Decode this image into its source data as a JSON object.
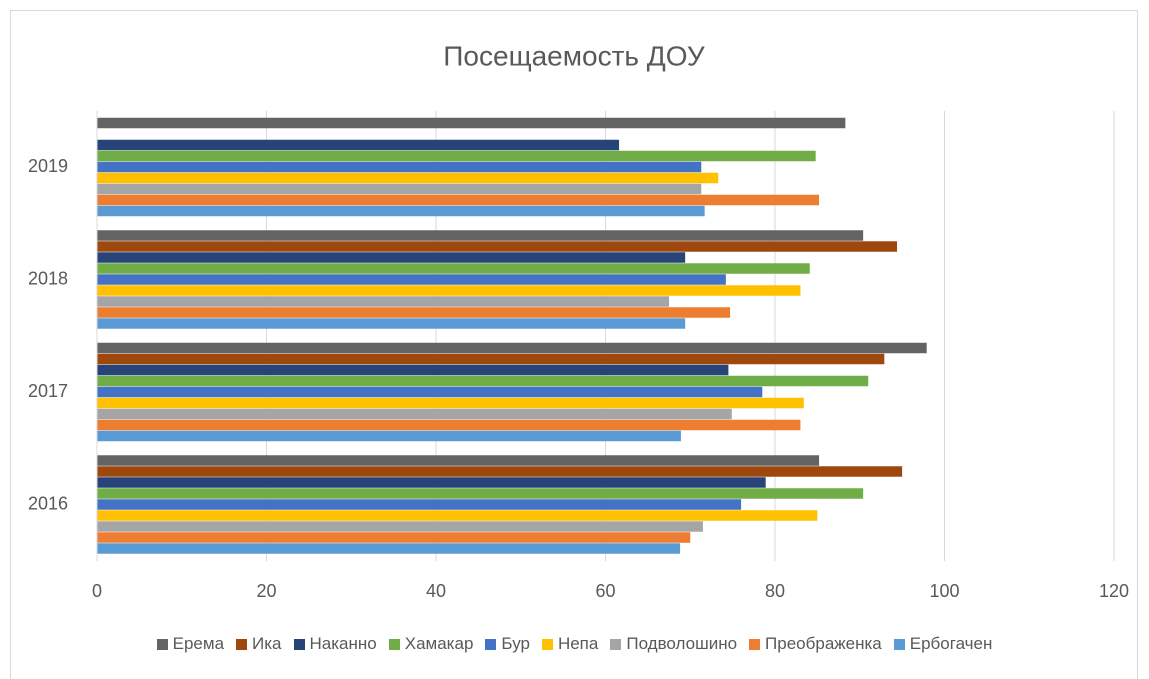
{
  "chart_data": {
    "type": "bar",
    "orientation": "horizontal",
    "title": "Посещаемость ДОУ",
    "categories": [
      "2016",
      "2017",
      "2018",
      "2019"
    ],
    "series": [
      {
        "name": "Ерема",
        "color": "#636363",
        "values": [
          85.2,
          97.9,
          90.4,
          88.3
        ]
      },
      {
        "name": "Ика",
        "color": "#9e480e",
        "values": [
          95,
          92.9,
          94.4,
          null
        ]
      },
      {
        "name": "Наканно",
        "color": "#264478",
        "values": [
          78.9,
          74.5,
          69.4,
          61.6
        ]
      },
      {
        "name": "Хамакар",
        "color": "#70ad47",
        "values": [
          90.4,
          91,
          84.1,
          84.8
        ]
      },
      {
        "name": "Бур",
        "color": "#4472c4",
        "values": [
          76,
          78.5,
          74.2,
          71.3
        ]
      },
      {
        "name": "Непа",
        "color": "#ffc000",
        "values": [
          85,
          83.4,
          83,
          73.3
        ]
      },
      {
        "name": "Подволошино",
        "color": "#a5a5a5",
        "values": [
          71.5,
          74.9,
          67.5,
          71.3
        ]
      },
      {
        "name": "Преображенка",
        "color": "#ed7d31",
        "values": [
          70,
          83,
          74.7,
          85.2
        ]
      },
      {
        "name": "Ербогачен",
        "color": "#5b9bd5",
        "values": [
          68.8,
          68.9,
          69.4,
          71.7
        ]
      }
    ],
    "xlim": [
      0,
      120
    ],
    "xticks": [
      0,
      20,
      40,
      60,
      80,
      100,
      120
    ],
    "grid": true,
    "legend": "bottom"
  }
}
